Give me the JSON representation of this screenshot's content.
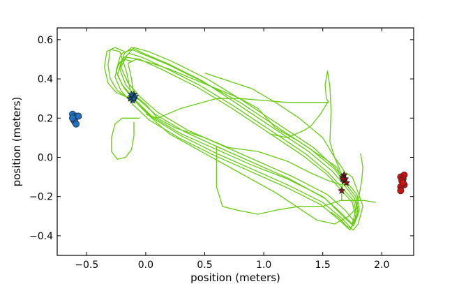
{
  "chart_data": {
    "type": "scatter",
    "title": "",
    "xlabel": "position (meters)",
    "ylabel": "position (meters)",
    "xlim": [
      -0.75,
      2.27
    ],
    "ylim": [
      -0.5,
      0.66
    ],
    "xticks": [
      -0.5,
      0.0,
      0.5,
      1.0,
      1.5,
      2.0
    ],
    "xtick_labels": [
      "−0.5",
      "0.0",
      "0.5",
      "1.0",
      "1.5",
      "2.0"
    ],
    "yticks": [
      -0.4,
      -0.2,
      0.0,
      0.2,
      0.4,
      0.6
    ],
    "ytick_labels": [
      "−0.4",
      "−0.2",
      "0.0",
      "0.2",
      "0.4",
      "0.6"
    ],
    "grid": false,
    "colors": {
      "trajectory": "#66cc11",
      "left_dots": "#1f6fc4",
      "right_dots": "#cc1111",
      "start_stars": "#1a5a9a",
      "end_stars": "#8b1a1a"
    },
    "trajectory_paths": [
      [
        [
          -0.22,
          0.51
        ],
        [
          -0.25,
          0.44
        ],
        [
          -0.2,
          0.37
        ],
        [
          -0.1,
          0.3
        ],
        [
          0.05,
          0.21
        ],
        [
          0.3,
          0.12
        ],
        [
          0.6,
          0.04
        ],
        [
          0.9,
          -0.04
        ],
        [
          1.2,
          -0.11
        ],
        [
          1.5,
          -0.2
        ],
        [
          1.65,
          -0.28
        ],
        [
          1.75,
          -0.34
        ],
        [
          1.8,
          -0.28
        ],
        [
          1.78,
          -0.2
        ],
        [
          1.7,
          -0.14
        ],
        [
          1.6,
          -0.06
        ],
        [
          1.4,
          0.04
        ],
        [
          1.1,
          0.16
        ],
        [
          0.8,
          0.28
        ],
        [
          0.5,
          0.38
        ],
        [
          0.2,
          0.47
        ],
        [
          0.0,
          0.52
        ],
        [
          -0.12,
          0.55
        ],
        [
          -0.2,
          0.53
        ],
        [
          -0.22,
          0.51
        ]
      ],
      [
        [
          -0.18,
          0.53
        ],
        [
          -0.22,
          0.45
        ],
        [
          -0.17,
          0.37
        ],
        [
          -0.07,
          0.3
        ],
        [
          0.08,
          0.22
        ],
        [
          0.33,
          0.13
        ],
        [
          0.62,
          0.05
        ],
        [
          0.92,
          -0.03
        ],
        [
          1.22,
          -0.11
        ],
        [
          1.52,
          -0.21
        ],
        [
          1.67,
          -0.3
        ],
        [
          1.76,
          -0.35
        ],
        [
          1.8,
          -0.29
        ],
        [
          1.77,
          -0.21
        ],
        [
          1.68,
          -0.14
        ],
        [
          1.58,
          -0.07
        ],
        [
          1.38,
          0.03
        ],
        [
          1.08,
          0.15
        ],
        [
          0.78,
          0.27
        ],
        [
          0.48,
          0.39
        ],
        [
          0.18,
          0.48
        ],
        [
          -0.02,
          0.53
        ],
        [
          -0.12,
          0.56
        ],
        [
          -0.18,
          0.53
        ]
      ],
      [
        [
          -0.2,
          0.5
        ],
        [
          -0.24,
          0.42
        ],
        [
          -0.18,
          0.35
        ],
        [
          -0.08,
          0.28
        ],
        [
          0.06,
          0.2
        ],
        [
          0.3,
          0.11
        ],
        [
          0.6,
          0.02
        ],
        [
          0.9,
          -0.06
        ],
        [
          1.2,
          -0.14
        ],
        [
          1.5,
          -0.23
        ],
        [
          1.66,
          -0.31
        ],
        [
          1.74,
          -0.36
        ],
        [
          1.79,
          -0.3
        ],
        [
          1.76,
          -0.22
        ],
        [
          1.67,
          -0.16
        ],
        [
          1.55,
          -0.08
        ],
        [
          1.35,
          0.02
        ],
        [
          1.05,
          0.14
        ],
        [
          0.75,
          0.26
        ],
        [
          0.45,
          0.37
        ],
        [
          0.15,
          0.46
        ],
        [
          -0.03,
          0.51
        ],
        [
          -0.14,
          0.53
        ],
        [
          -0.2,
          0.5
        ]
      ],
      [
        [
          -0.16,
          0.52
        ],
        [
          -0.21,
          0.46
        ],
        [
          -0.15,
          0.38
        ],
        [
          -0.05,
          0.31
        ],
        [
          0.1,
          0.23
        ],
        [
          0.35,
          0.14
        ],
        [
          0.65,
          0.06
        ],
        [
          0.95,
          -0.02
        ],
        [
          1.25,
          -0.1
        ],
        [
          1.54,
          -0.19
        ],
        [
          1.69,
          -0.27
        ],
        [
          1.77,
          -0.33
        ],
        [
          1.81,
          -0.27
        ],
        [
          1.79,
          -0.19
        ],
        [
          1.71,
          -0.13
        ],
        [
          1.6,
          -0.05
        ],
        [
          1.42,
          0.05
        ],
        [
          1.12,
          0.17
        ],
        [
          0.82,
          0.29
        ],
        [
          0.52,
          0.4
        ],
        [
          0.22,
          0.49
        ],
        [
          0.02,
          0.54
        ],
        [
          -0.1,
          0.56
        ],
        [
          -0.16,
          0.52
        ]
      ],
      [
        [
          -0.23,
          0.48
        ],
        [
          -0.26,
          0.41
        ],
        [
          -0.21,
          0.34
        ],
        [
          -0.11,
          0.27
        ],
        [
          0.03,
          0.19
        ],
        [
          0.28,
          0.1
        ],
        [
          0.58,
          0.01
        ],
        [
          0.88,
          -0.07
        ],
        [
          1.18,
          -0.15
        ],
        [
          1.48,
          -0.24
        ],
        [
          1.64,
          -0.32
        ],
        [
          1.73,
          -0.37
        ],
        [
          1.78,
          -0.31
        ],
        [
          1.75,
          -0.23
        ],
        [
          1.66,
          -0.17
        ],
        [
          1.54,
          -0.09
        ],
        [
          1.33,
          0.01
        ],
        [
          1.03,
          0.13
        ],
        [
          0.73,
          0.25
        ],
        [
          0.43,
          0.36
        ],
        [
          0.13,
          0.45
        ],
        [
          -0.05,
          0.5
        ],
        [
          -0.16,
          0.51
        ],
        [
          -0.23,
          0.48
        ]
      ],
      [
        [
          -0.11,
          0.3
        ],
        [
          -0.05,
          0.26
        ],
        [
          0.05,
          0.2
        ],
        [
          0.2,
          0.12
        ],
        [
          0.5,
          0.02
        ],
        [
          0.8,
          -0.08
        ],
        [
          1.1,
          -0.18
        ],
        [
          1.3,
          -0.26
        ],
        [
          1.45,
          -0.32
        ],
        [
          1.6,
          -0.34
        ],
        [
          1.72,
          -0.3
        ],
        [
          1.8,
          -0.25
        ]
      ],
      [
        [
          1.66,
          -0.1
        ],
        [
          1.62,
          -0.05
        ],
        [
          1.5,
          0.0
        ],
        [
          1.3,
          0.08
        ],
        [
          1.1,
          0.15
        ],
        [
          0.95,
          0.25
        ],
        [
          0.8,
          0.3
        ],
        [
          0.6,
          0.35
        ],
        [
          0.4,
          0.4
        ],
        [
          0.2,
          0.45
        ],
        [
          0.05,
          0.48
        ],
        [
          -0.08,
          0.5
        ],
        [
          -0.15,
          0.48
        ],
        [
          -0.12,
          0.4
        ],
        [
          -0.1,
          0.31
        ]
      ],
      [
        [
          -0.12,
          0.31
        ],
        [
          -0.16,
          0.43
        ],
        [
          -0.22,
          0.54
        ],
        [
          -0.3,
          0.55
        ],
        [
          -0.32,
          0.47
        ],
        [
          -0.3,
          0.4
        ],
        [
          -0.24,
          0.34
        ],
        [
          -0.17,
          0.31
        ],
        [
          -0.12,
          0.31
        ]
      ],
      [
        [
          -0.13,
          0.3
        ],
        [
          -0.25,
          0.33
        ],
        [
          -0.32,
          0.38
        ],
        [
          -0.35,
          0.46
        ],
        [
          -0.33,
          0.54
        ],
        [
          -0.26,
          0.56
        ],
        [
          -0.18,
          0.54
        ]
      ],
      [
        [
          -0.05,
          0.2
        ],
        [
          -0.12,
          0.2
        ],
        [
          -0.2,
          0.2
        ],
        [
          -0.26,
          0.17
        ],
        [
          -0.29,
          0.1
        ],
        [
          -0.29,
          0.03
        ],
        [
          -0.24,
          -0.01
        ],
        [
          -0.17,
          0.0
        ],
        [
          -0.12,
          0.04
        ],
        [
          -0.1,
          0.11
        ],
        [
          -0.1,
          0.18
        ]
      ],
      [
        [
          1.55,
          0.29
        ],
        [
          1.48,
          0.22
        ],
        [
          1.4,
          0.16
        ],
        [
          1.35,
          0.14
        ],
        [
          1.2,
          0.1
        ],
        [
          1.05,
          0.12
        ]
      ],
      [
        [
          1.55,
          0.28
        ],
        [
          1.53,
          0.3
        ],
        [
          1.52,
          0.37
        ],
        [
          1.54,
          0.44
        ],
        [
          1.56,
          0.36
        ],
        [
          1.57,
          0.24
        ],
        [
          1.56,
          0.08
        ],
        [
          1.6,
          0.0
        ],
        [
          1.66,
          -0.05
        ],
        [
          1.7,
          -0.09
        ]
      ],
      [
        [
          0.0,
          0.22
        ],
        [
          0.1,
          0.2
        ],
        [
          0.3,
          0.25
        ],
        [
          0.6,
          0.3
        ],
        [
          0.8,
          0.3
        ],
        [
          1.0,
          0.29
        ],
        [
          1.2,
          0.28
        ],
        [
          1.3,
          0.28
        ],
        [
          1.4,
          0.28
        ],
        [
          1.55,
          0.28
        ]
      ],
      [
        [
          0.6,
          0.06
        ],
        [
          0.6,
          -0.05
        ],
        [
          0.6,
          -0.15
        ],
        [
          0.65,
          -0.25
        ],
        [
          0.78,
          -0.27
        ],
        [
          0.95,
          -0.29
        ],
        [
          1.1,
          -0.27
        ],
        [
          1.3,
          -0.25
        ],
        [
          1.5,
          -0.25
        ],
        [
          1.65,
          -0.22
        ],
        [
          1.75,
          -0.22
        ],
        [
          1.85,
          -0.22
        ],
        [
          1.95,
          -0.23
        ]
      ],
      [
        [
          1.75,
          -0.34
        ],
        [
          1.8,
          -0.22
        ],
        [
          1.83,
          -0.12
        ],
        [
          1.84,
          -0.05
        ],
        [
          1.82,
          0.02
        ]
      ],
      [
        [
          1.66,
          -0.22
        ],
        [
          1.66,
          -0.17
        ],
        [
          1.67,
          -0.12
        ],
        [
          1.7,
          -0.08
        ],
        [
          1.75,
          -0.1
        ],
        [
          1.8,
          -0.18
        ],
        [
          1.84,
          -0.25
        ],
        [
          1.8,
          -0.34
        ],
        [
          1.76,
          -0.37
        ],
        [
          1.7,
          -0.35
        ],
        [
          1.64,
          -0.31
        ],
        [
          1.57,
          -0.28
        ]
      ],
      [
        [
          -0.25,
          0.45
        ],
        [
          -0.22,
          0.48
        ],
        [
          -0.18,
          0.5
        ],
        [
          -0.12,
          0.49
        ]
      ],
      [
        [
          0.5,
          0.43
        ],
        [
          0.7,
          0.39
        ],
        [
          0.9,
          0.35
        ],
        [
          1.1,
          0.28
        ],
        [
          1.3,
          0.2
        ],
        [
          1.5,
          0.1
        ],
        [
          1.6,
          0.0
        ],
        [
          1.67,
          -0.1
        ]
      ],
      [
        [
          -0.08,
          0.31
        ],
        [
          0.0,
          0.27
        ],
        [
          0.1,
          0.2
        ],
        [
          0.25,
          0.15
        ],
        [
          0.5,
          0.1
        ],
        [
          0.7,
          0.05
        ],
        [
          0.95,
          0.03
        ],
        [
          1.2,
          -0.02
        ],
        [
          1.4,
          -0.08
        ],
        [
          1.55,
          -0.12
        ],
        [
          1.66,
          -0.14
        ]
      ]
    ],
    "series": [
      {
        "color": "#1f6fc4",
        "marker": "circle",
        "points": [
          [
            -0.62,
            0.22
          ],
          [
            -0.59,
            0.21
          ],
          [
            -0.6,
            0.2
          ],
          [
            -0.61,
            0.19
          ],
          [
            -0.6,
            0.18
          ],
          [
            -0.59,
            0.17
          ],
          [
            -0.57,
            0.21
          ],
          [
            -0.62,
            0.2
          ]
        ]
      },
      {
        "color": "#cc1111",
        "marker": "circle",
        "points": [
          [
            2.16,
            -0.1
          ],
          [
            2.19,
            -0.09
          ],
          [
            2.18,
            -0.11
          ],
          [
            2.17,
            -0.12
          ],
          [
            2.19,
            -0.14
          ],
          [
            2.16,
            -0.15
          ],
          [
            2.18,
            -0.13
          ],
          [
            2.16,
            -0.17
          ]
        ]
      },
      {
        "color": "#1a5a9a",
        "marker": "star",
        "points": [
          [
            -0.12,
            0.31
          ],
          [
            -0.1,
            0.32
          ],
          [
            -0.13,
            0.3
          ],
          [
            -0.11,
            0.29
          ],
          [
            -0.09,
            0.31
          ],
          [
            -0.12,
            0.32
          ],
          [
            -0.1,
            0.3
          ]
        ]
      },
      {
        "color": "#8b1a1a",
        "marker": "star",
        "points": [
          [
            1.68,
            -0.09
          ],
          [
            1.67,
            -0.1
          ],
          [
            1.69,
            -0.11
          ],
          [
            1.68,
            -0.12
          ],
          [
            1.7,
            -0.13
          ],
          [
            1.67,
            -0.11
          ],
          [
            1.66,
            -0.17
          ]
        ]
      }
    ]
  }
}
